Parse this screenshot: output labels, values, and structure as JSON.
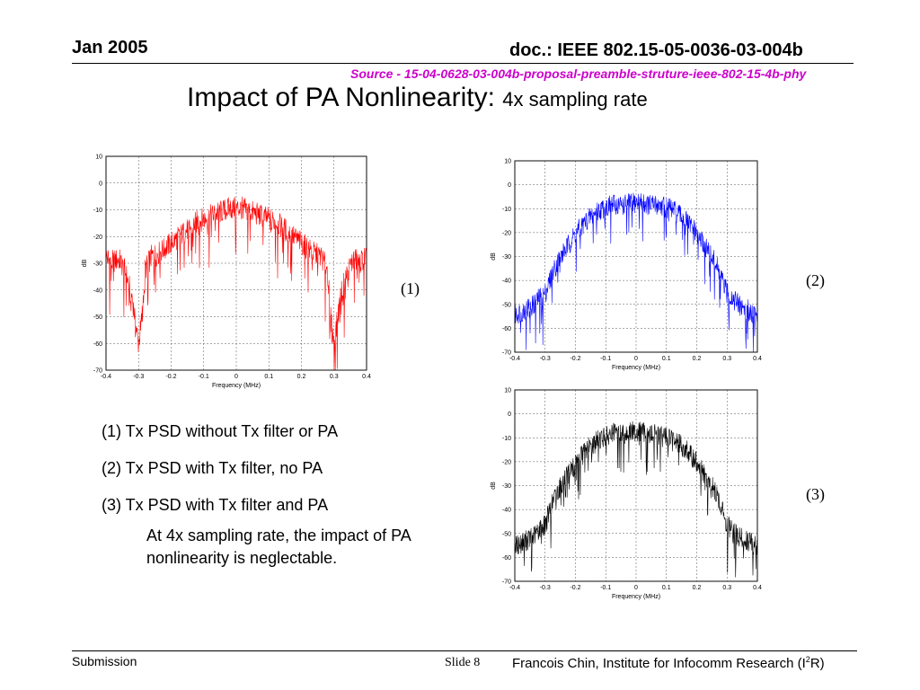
{
  "header": {
    "date": "Jan 2005",
    "doc_id": "doc.: IEEE 802.15-05-0036-03-004b",
    "source": "Source - 15-04-0628-03-004b-proposal-preamble-struture-ieee-802-15-4b-phy"
  },
  "title": {
    "main": "Impact of PA Nonlinearity: ",
    "sub": "4x sampling rate"
  },
  "legend": {
    "items": [
      "(1) Tx PSD without Tx filter or PA",
      "(2) Tx PSD with Tx filter, no PA",
      "(3) Tx PSD with Tx filter and PA"
    ],
    "note": "At 4x sampling rate, the impact of PA nonlinearity is neglectable."
  },
  "footer": {
    "submission": "Submission",
    "slide_word": "Slide",
    "slide_number": "8",
    "author": "Francois Chin, Institute for Infocomm Research (I",
    "author_sup": "2",
    "author_end": "R)"
  },
  "chart_data": [
    {
      "type": "line",
      "label": "(1)",
      "color": "#ff0000",
      "xlabel": "Frequency (MHz)",
      "ylabel": "dB",
      "xlim": [
        -0.4,
        0.4
      ],
      "ylim": [
        -70,
        10
      ],
      "xticks": [
        "-0.4",
        "-0.3",
        "-0.2",
        "-0.1",
        "0",
        "0.1",
        "0.2",
        "0.3",
        "0.4"
      ],
      "yticks": [
        "10",
        "0",
        "-10",
        "-20",
        "-30",
        "-40",
        "-50",
        "-60",
        "-70"
      ],
      "grid": true,
      "x": [
        -0.4,
        -0.38,
        -0.36,
        -0.34,
        -0.32,
        -0.3,
        -0.29,
        -0.28,
        -0.26,
        -0.24,
        -0.22,
        -0.2,
        -0.18,
        -0.16,
        -0.14,
        -0.12,
        -0.1,
        -0.08,
        -0.06,
        -0.04,
        -0.02,
        0,
        0.02,
        0.04,
        0.06,
        0.08,
        0.1,
        0.12,
        0.14,
        0.16,
        0.18,
        0.2,
        0.22,
        0.24,
        0.26,
        0.28,
        0.29,
        0.3,
        0.32,
        0.34,
        0.36,
        0.38,
        0.4
      ],
      "y": [
        -27,
        -29,
        -28,
        -33,
        -42,
        -60,
        -50,
        -32,
        -27,
        -26,
        -24,
        -22,
        -20,
        -18,
        -16,
        -14,
        -13,
        -12,
        -11,
        -10,
        -9,
        -9,
        -9,
        -10,
        -11,
        -12,
        -13,
        -14,
        -16,
        -18,
        -20,
        -22,
        -24,
        -26,
        -27,
        -32,
        -50,
        -60,
        -42,
        -33,
        -28,
        -29,
        -27
      ]
    },
    {
      "type": "line",
      "label": "(2)",
      "color": "#0000ff",
      "xlabel": "Frequency (MHz)",
      "ylabel": "dB",
      "xlim": [
        -0.4,
        0.4
      ],
      "ylim": [
        -70,
        10
      ],
      "xticks": [
        "-0.4",
        "-0.3",
        "-0.2",
        "-0.1",
        "0",
        "0.1",
        "0.2",
        "0.3",
        "0.4"
      ],
      "yticks": [
        "10",
        "0",
        "-10",
        "-20",
        "-30",
        "-40",
        "-50",
        "-60",
        "-70"
      ],
      "grid": true,
      "x": [
        -0.4,
        -0.37,
        -0.34,
        -0.32,
        -0.3,
        -0.28,
        -0.26,
        -0.24,
        -0.22,
        -0.2,
        -0.18,
        -0.16,
        -0.14,
        -0.12,
        -0.1,
        -0.08,
        -0.06,
        -0.04,
        -0.02,
        0,
        0.02,
        0.04,
        0.06,
        0.08,
        0.1,
        0.12,
        0.14,
        0.16,
        0.18,
        0.2,
        0.22,
        0.24,
        0.26,
        0.28,
        0.3,
        0.32,
        0.34,
        0.37,
        0.4
      ],
      "y": [
        -54,
        -52,
        -50,
        -47,
        -45,
        -38,
        -32,
        -28,
        -24,
        -20,
        -17,
        -14,
        -12,
        -10,
        -9,
        -8,
        -8,
        -8,
        -7,
        -7,
        -7,
        -8,
        -8,
        -8,
        -9,
        -10,
        -12,
        -14,
        -17,
        -20,
        -24,
        -28,
        -32,
        -38,
        -45,
        -47,
        -50,
        -52,
        -54
      ]
    },
    {
      "type": "line",
      "label": "(3)",
      "color": "#000000",
      "xlabel": "Frequency (MHz)",
      "ylabel": "dB",
      "xlim": [
        -0.4,
        0.4
      ],
      "ylim": [
        -70,
        10
      ],
      "xticks": [
        "-0.4",
        "-0.3",
        "-0.2",
        "-0.1",
        "0",
        "0.1",
        "0.2",
        "0.3",
        "0.4"
      ],
      "yticks": [
        "10",
        "0",
        "-10",
        "-20",
        "-30",
        "-40",
        "-50",
        "-60",
        "-70"
      ],
      "grid": true,
      "x": [
        -0.4,
        -0.37,
        -0.34,
        -0.32,
        -0.3,
        -0.28,
        -0.26,
        -0.24,
        -0.22,
        -0.2,
        -0.18,
        -0.16,
        -0.14,
        -0.12,
        -0.1,
        -0.08,
        -0.06,
        -0.04,
        -0.02,
        0,
        0.02,
        0.04,
        0.06,
        0.08,
        0.1,
        0.12,
        0.14,
        0.16,
        0.18,
        0.2,
        0.22,
        0.24,
        0.26,
        0.28,
        0.3,
        0.32,
        0.34,
        0.37,
        0.4
      ],
      "y": [
        -55,
        -53,
        -51,
        -48,
        -46,
        -38,
        -32,
        -28,
        -24,
        -20,
        -17,
        -14,
        -12,
        -10,
        -9,
        -8,
        -8,
        -8,
        -7,
        -7,
        -7,
        -8,
        -8,
        -8,
        -9,
        -10,
        -12,
        -14,
        -17,
        -20,
        -24,
        -28,
        -32,
        -38,
        -46,
        -48,
        -51,
        -53,
        -55
      ]
    }
  ]
}
